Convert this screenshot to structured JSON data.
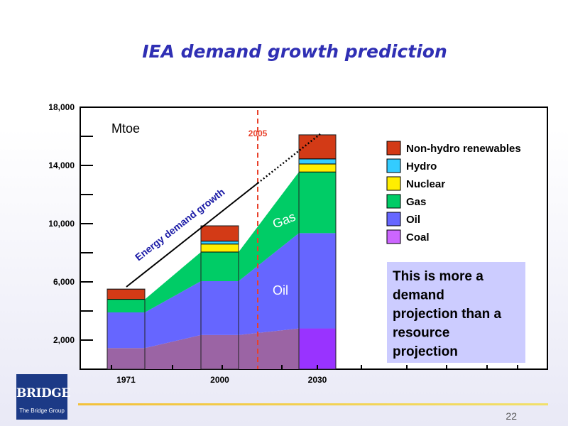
{
  "slide": {
    "title": "IEA demand growth prediction",
    "page_number": "22",
    "logo": {
      "main": "BRIDGE",
      "sub": "The Bridge Group"
    }
  },
  "chart_data": {
    "type": "area",
    "unit_label": "Mtoe",
    "x": [
      "1971",
      "2000",
      "2030"
    ],
    "yticks": [
      "2,000",
      "6,000",
      "10,000",
      "14,000",
      "18,000"
    ],
    "ylim": [
      0,
      18000
    ],
    "stack_order": [
      "Coal",
      "Oil",
      "Gas",
      "Nuclear",
      "Hydro",
      "Non-hydro renewables"
    ],
    "series": [
      {
        "name": "Coal",
        "color": "#9b64a4",
        "color_2030": "#9933ff",
        "values": [
          1450,
          2350,
          2800
        ]
      },
      {
        "name": "Oil",
        "color": "#6666ff",
        "values": [
          2450,
          3700,
          6550
        ]
      },
      {
        "name": "Gas",
        "color": "#00cc66",
        "values": [
          900,
          2000,
          4200
        ]
      },
      {
        "name": "Nuclear",
        "color": "#ffee00",
        "values": [
          0,
          550,
          550
        ]
      },
      {
        "name": "Hydro",
        "color": "#33ccff",
        "values": [
          0,
          200,
          350
        ]
      },
      {
        "name": "Non-hydro renewables",
        "color": "#d33a16",
        "values": [
          700,
          1050,
          1650
        ]
      }
    ],
    "legend": [
      "Non-hydro renewables",
      "Hydro",
      "Nuclear",
      "Gas",
      "Oil",
      "Coal"
    ],
    "annotations": {
      "year_marker": "2005",
      "growth_label": "Energy demand growth",
      "gas_label": "Gas",
      "oil_label": "Oil",
      "note": [
        "This is more a",
        "demand",
        "projection than a",
        "resource",
        "projection"
      ]
    }
  }
}
